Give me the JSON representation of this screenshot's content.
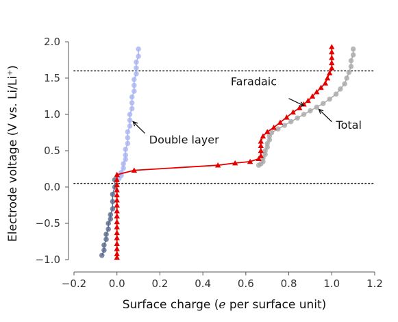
{
  "chart_data": {
    "type": "line",
    "xlabel_parts": [
      "Surface charge (",
      "e",
      " per surface unit)"
    ],
    "ylabel_parts": [
      "Electrode voltage (V vs. Li/Li",
      "+",
      ")"
    ],
    "xlim": [
      -0.2,
      1.2
    ],
    "ylim": [
      -1.0,
      2.0
    ],
    "xticks": [
      -0.2,
      0.0,
      0.2,
      0.4,
      0.6,
      0.8,
      1.0,
      1.2
    ],
    "yticks": [
      -1.0,
      -0.5,
      0.0,
      0.5,
      1.0,
      1.5,
      2.0
    ],
    "xtick_labels": [
      "−0.2",
      "0.0",
      "0.2",
      "0.4",
      "0.6",
      "0.8",
      "1.0",
      "1.2"
    ],
    "ytick_labels": [
      "−1.0",
      "−0.5",
      "0.0",
      "0.5",
      "1.0",
      "1.5",
      "2.0"
    ],
    "grid": false,
    "hlines": [
      {
        "y": 1.6,
        "style": "dotted"
      },
      {
        "y": 0.05,
        "style": "dotted"
      }
    ],
    "series": [
      {
        "key": "total",
        "color": "#a9a9a9",
        "marker": "circle",
        "x": [
          1.1,
          1.1,
          1.09,
          1.09,
          1.08,
          1.07,
          1.06,
          1.04,
          1.02,
          0.99,
          0.96,
          0.93,
          0.9,
          0.87,
          0.84,
          0.81,
          0.78,
          0.75,
          0.72,
          0.71,
          0.71,
          0.7,
          0.7,
          0.69,
          0.69,
          0.68,
          0.68,
          0.67,
          0.66
        ],
        "y": [
          1.9,
          1.82,
          1.74,
          1.66,
          1.58,
          1.5,
          1.42,
          1.35,
          1.28,
          1.21,
          1.15,
          1.1,
          1.05,
          1.0,
          0.95,
          0.9,
          0.85,
          0.8,
          0.75,
          0.7,
          0.65,
          0.6,
          0.55,
          0.5,
          0.45,
          0.4,
          0.35,
          0.32,
          0.3
        ]
      },
      {
        "key": "double_layer",
        "color": "#a9b4f0",
        "marker": "circle",
        "x": [
          0.1,
          0.1,
          0.09,
          0.09,
          0.09,
          0.08,
          0.08,
          0.08,
          0.07,
          0.07,
          0.07,
          0.06,
          0.06,
          0.06,
          0.05,
          0.05,
          0.05,
          0.04,
          0.04,
          0.04,
          0.03,
          0.03,
          0.02,
          0.02,
          0.01
        ],
        "y": [
          1.9,
          1.8,
          1.72,
          1.64,
          1.56,
          1.48,
          1.4,
          1.32,
          1.24,
          1.16,
          1.08,
          1.0,
          0.92,
          0.84,
          0.76,
          0.68,
          0.6,
          0.52,
          0.44,
          0.38,
          0.32,
          0.26,
          0.2,
          0.16,
          0.12
        ]
      },
      {
        "key": "low_voltage",
        "color": "#5a6a8c",
        "marker": "circle",
        "x": [
          -0.01,
          -0.01,
          -0.02,
          -0.02,
          -0.02,
          -0.03,
          -0.03,
          -0.04,
          -0.04,
          -0.05,
          -0.05,
          -0.06,
          -0.06,
          -0.07
        ],
        "y": [
          0.1,
          0.0,
          -0.1,
          -0.2,
          -0.3,
          -0.38,
          -0.44,
          -0.5,
          -0.58,
          -0.65,
          -0.72,
          -0.8,
          -0.87,
          -0.94
        ]
      },
      {
        "key": "faradaic",
        "color": "#e50000",
        "marker": "triangle",
        "x": [
          1.0,
          1.0,
          1.0,
          1.0,
          1.0,
          0.99,
          0.98,
          0.97,
          0.95,
          0.93,
          0.91,
          0.89,
          0.87,
          0.85,
          0.82,
          0.79,
          0.76,
          0.73,
          0.7,
          0.68,
          0.67,
          0.67,
          0.67,
          0.67,
          0.66,
          0.62,
          0.55,
          0.47,
          0.08,
          0.0,
          0.0,
          0.0,
          0.0,
          0.0,
          0.0,
          0.0,
          0.0,
          0.0,
          0.0,
          0.0,
          0.0,
          0.0,
          0.0,
          0.0,
          0.0,
          0.0
        ],
        "y": [
          1.93,
          1.86,
          1.78,
          1.71,
          1.64,
          1.57,
          1.5,
          1.43,
          1.37,
          1.31,
          1.25,
          1.19,
          1.14,
          1.09,
          1.03,
          0.96,
          0.89,
          0.82,
          0.76,
          0.7,
          0.63,
          0.57,
          0.5,
          0.43,
          0.39,
          0.35,
          0.33,
          0.3,
          0.23,
          0.17,
          0.1,
          0.03,
          -0.04,
          -0.11,
          -0.18,
          -0.25,
          -0.33,
          -0.4,
          -0.48,
          -0.55,
          -0.63,
          -0.7,
          -0.78,
          -0.85,
          -0.92,
          -0.97
        ]
      }
    ],
    "annotations": [
      {
        "text": "Double layer",
        "text_x": 0.15,
        "text_y": 0.6,
        "arrow_from": [
          0.13,
          0.74
        ],
        "arrow_to": [
          0.075,
          0.9
        ]
      },
      {
        "text": "Faradaic",
        "text_x": 0.53,
        "text_y": 1.4,
        "arrow_from": [
          0.8,
          1.22
        ],
        "arrow_to": [
          0.87,
          1.12
        ]
      },
      {
        "text": "Total",
        "text_x": 1.02,
        "text_y": 0.8,
        "arrow_from": [
          1.0,
          0.9
        ],
        "arrow_to": [
          0.94,
          1.07
        ]
      }
    ]
  }
}
